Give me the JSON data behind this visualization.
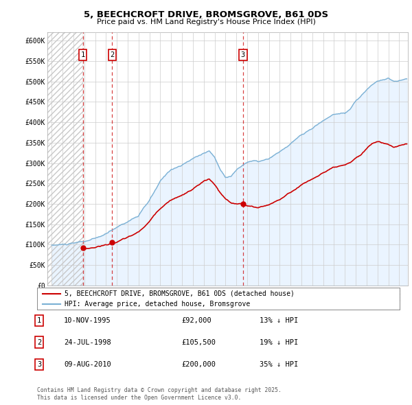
{
  "title": "5, BEECHCROFT DRIVE, BROMSGROVE, B61 0DS",
  "subtitle": "Price paid vs. HM Land Registry's House Price Index (HPI)",
  "legend_line1": "5, BEECHCROFT DRIVE, BROMSGROVE, B61 0DS (detached house)",
  "legend_line2": "HPI: Average price, detached house, Bromsgrove",
  "transactions": [
    {
      "num": 1,
      "date": "10-NOV-1995",
      "price": 92000,
      "pct": "13%",
      "dir": "↓",
      "x_year": 1995.86
    },
    {
      "num": 2,
      "date": "24-JUL-1998",
      "price": 105500,
      "pct": "19%",
      "dir": "↓",
      "x_year": 1998.56
    },
    {
      "num": 3,
      "date": "09-AUG-2010",
      "price": 200000,
      "pct": "35%",
      "dir": "↓",
      "x_year": 2010.61
    }
  ],
  "footnote1": "Contains HM Land Registry data © Crown copyright and database right 2025.",
  "footnote2": "This data is licensed under the Open Government Licence v3.0.",
  "price_color": "#cc0000",
  "hpi_color": "#7ab0d4",
  "hpi_fill_color": "#ddeeff",
  "grid_color": "#cccccc",
  "ylim": [
    0,
    620000
  ],
  "yticks": [
    0,
    50000,
    100000,
    150000,
    200000,
    250000,
    300000,
    350000,
    400000,
    450000,
    500000,
    550000,
    600000
  ],
  "xlim_start": 1992.6,
  "xlim_end": 2025.8,
  "xticks": [
    1993,
    1994,
    1995,
    1996,
    1997,
    1998,
    1999,
    2000,
    2001,
    2002,
    2003,
    2004,
    2005,
    2006,
    2007,
    2008,
    2009,
    2010,
    2011,
    2012,
    2013,
    2014,
    2015,
    2016,
    2017,
    2018,
    2019,
    2020,
    2021,
    2022,
    2023,
    2024,
    2025
  ],
  "hpi_seed": 10,
  "prop_seed": 20
}
